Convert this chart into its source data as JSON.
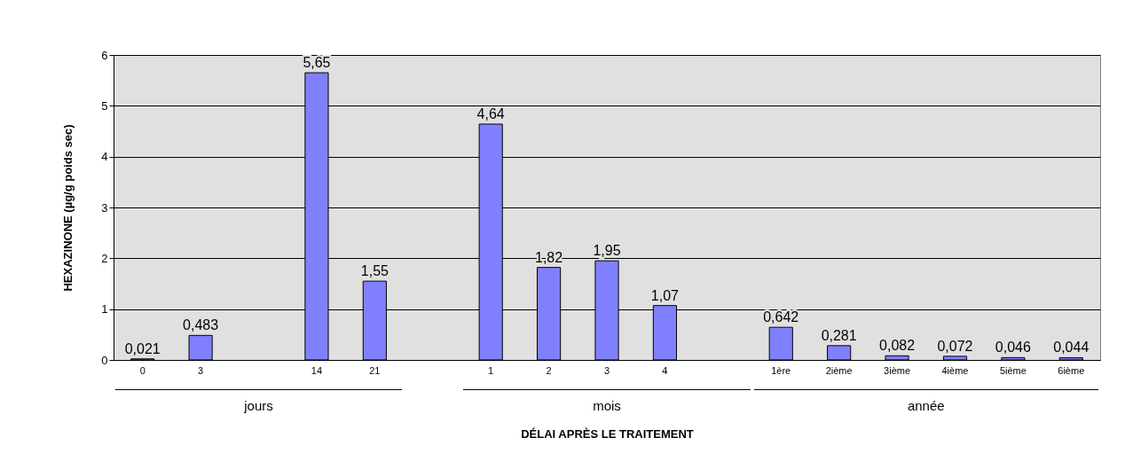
{
  "chart_data": {
    "type": "bar",
    "categories": [
      "0",
      "3",
      null,
      "14",
      "21",
      null,
      "1",
      "2",
      "3",
      "4",
      null,
      "1ère",
      "2ième",
      "3ième",
      "4ième",
      "5ième",
      "6ième"
    ],
    "values": [
      0.021,
      0.483,
      null,
      5.65,
      1.55,
      null,
      4.64,
      1.82,
      1.95,
      1.07,
      null,
      0.642,
      0.281,
      0.082,
      0.072,
      0.046,
      0.044
    ],
    "value_labels": [
      "0,021",
      "0,483",
      null,
      "5,65",
      "1,55",
      null,
      "4,64",
      "1,82",
      "1,95",
      "1,07",
      null,
      "0,642",
      "0,281",
      "0,082",
      "0,072",
      "0,046",
      "0,044"
    ],
    "color": "#8080ff",
    "xlabel": "DÉLAI APRÈS LE TRAITEMENT",
    "ylabel": "HEXAZINONE (µg/g poids sec)",
    "annotations": [
      "jours",
      "mois",
      "année"
    ],
    "ylim": [
      0,
      6
    ],
    "yticks": [
      0,
      1,
      2,
      3,
      4,
      5,
      6
    ],
    "grid": "y"
  }
}
